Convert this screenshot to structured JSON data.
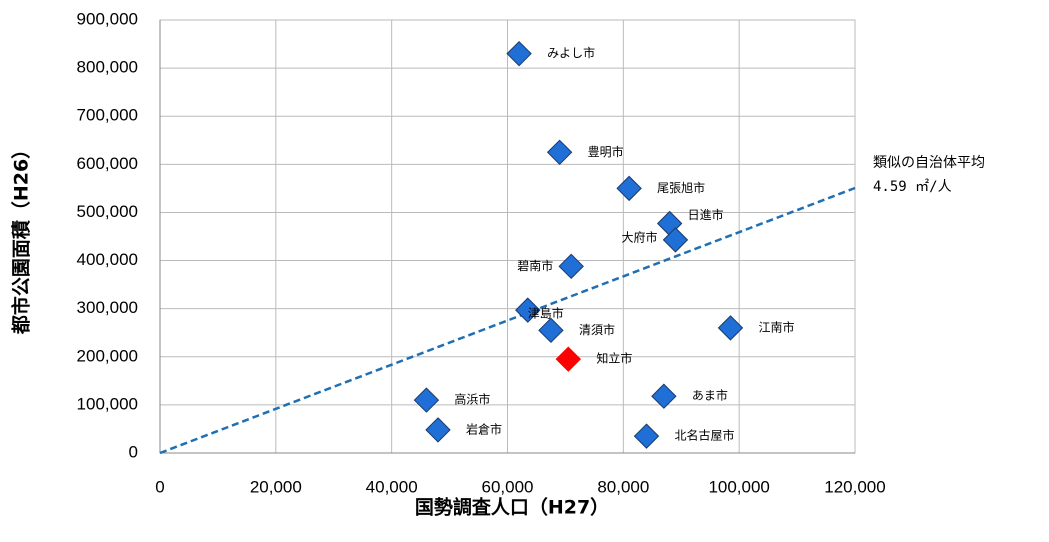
{
  "chart_data": {
    "type": "scatter",
    "x_label": "国勢調査人口（H27）",
    "y_label": "都市公園面積（H26）",
    "xlim": [
      0,
      120000
    ],
    "ylim": [
      0,
      900000
    ],
    "xticks": [
      0,
      {
        "value": 20000,
        "label": "20,000"
      },
      {
        "value": 40000,
        "label": "40,000"
      },
      {
        "value": 60000,
        "label": "60,000"
      },
      {
        "value": 80000,
        "label": "80,000"
      },
      {
        "value": 100000,
        "label": "100,000"
      },
      {
        "value": 120000,
        "label": "120,000"
      }
    ],
    "yticks": [
      0,
      {
        "value": 100000,
        "label": "100,000"
      },
      {
        "value": 200000,
        "label": "200,000"
      },
      {
        "value": 300000,
        "label": "300,000"
      },
      {
        "value": 400000,
        "label": "400,000"
      },
      {
        "value": 500000,
        "label": "500,000"
      },
      {
        "value": 600000,
        "label": "600,000"
      },
      {
        "value": 700000,
        "label": "700,000"
      },
      {
        "value": 800000,
        "label": "800,000"
      },
      {
        "value": 900000,
        "label": "900,000"
      }
    ],
    "grid": true,
    "point_labels": [
      "みよし市",
      "豊明市",
      "尾張旭市",
      "日進市",
      "大府市",
      "碧南市",
      "津島市",
      "清須市",
      "江南市",
      "知立市",
      "高浜市",
      "岩倉市",
      "あま市",
      "北名古屋市"
    ],
    "x": [
      62000,
      69000,
      81000,
      88000,
      89000,
      71000,
      63500,
      67500,
      98500,
      70500,
      46000,
      48000,
      87000,
      84000
    ],
    "values": [
      830000,
      625000,
      550000,
      477000,
      443000,
      388000,
      297000,
      255000,
      260000,
      195000,
      110000,
      48000,
      118000,
      35000
    ],
    "colors": [
      "#1f6fd6",
      "#1f6fd6",
      "#1f6fd6",
      "#1f6fd6",
      "#1f6fd6",
      "#1f6fd6",
      "#1f6fd6",
      "#1f6fd6",
      "#1f6fd6",
      "#ff0000",
      "#1f6fd6",
      "#1f6fd6",
      "#1f6fd6",
      "#1f6fd6"
    ],
    "trendline": {
      "slope": 4.59,
      "color": "#1f6fb4",
      "label": [
        "類似の自治体平均",
        "4.59 ㎡/人"
      ]
    }
  }
}
